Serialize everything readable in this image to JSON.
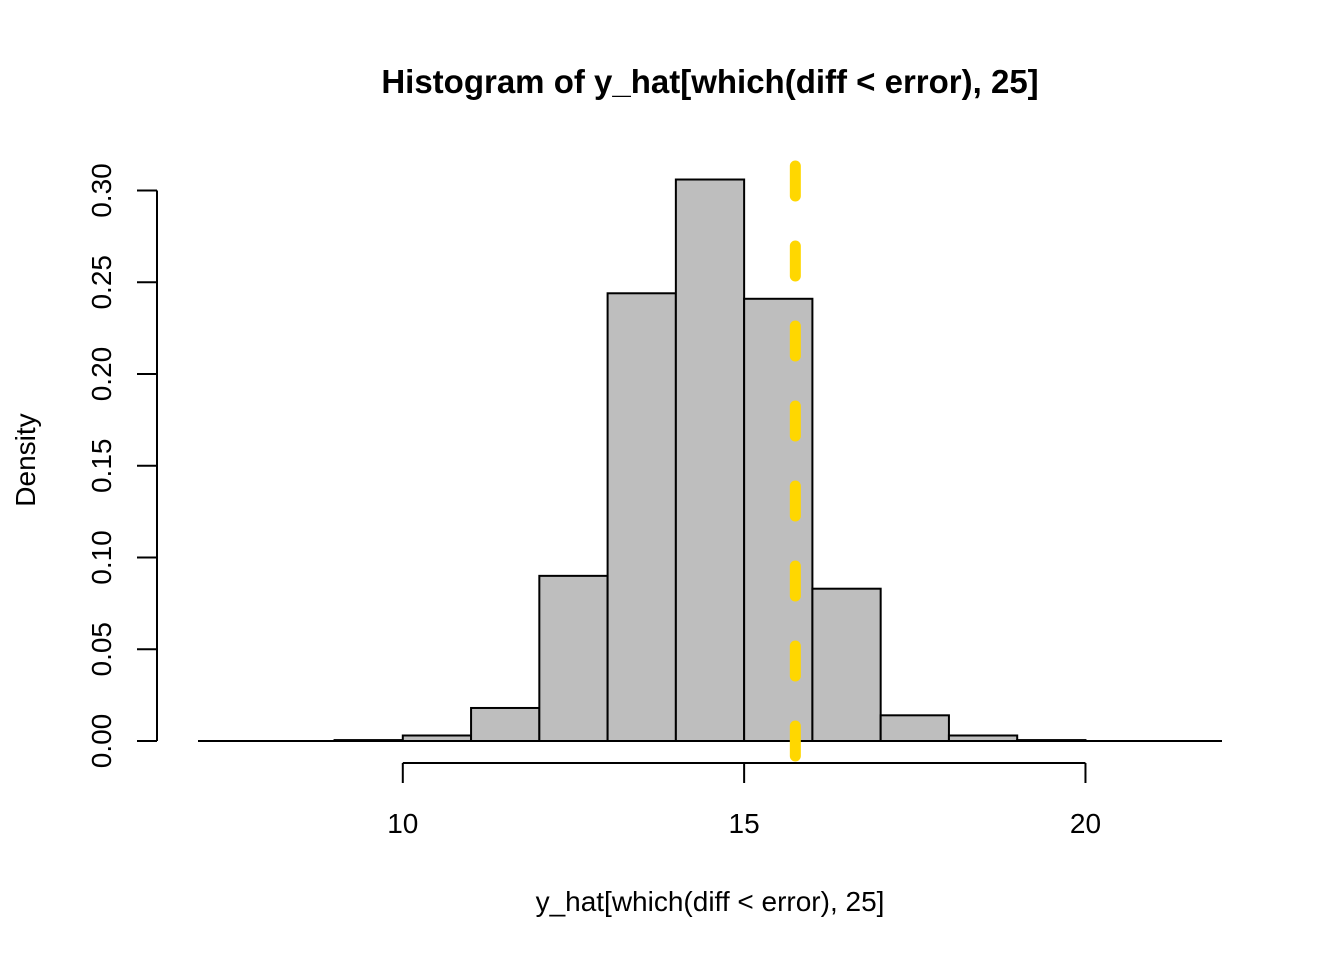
{
  "chart_data": {
    "type": "bar",
    "title": "Histogram of y_hat[which(diff < error), 25]",
    "xlabel": "y_hat[which(diff < error), 25]",
    "ylabel": "Density",
    "bins": [
      {
        "x0": 7,
        "x1": 8,
        "density": 0.0
      },
      {
        "x0": 8,
        "x1": 9,
        "density": 0.0
      },
      {
        "x0": 9,
        "x1": 10,
        "density": 0.0005
      },
      {
        "x0": 10,
        "x1": 11,
        "density": 0.003
      },
      {
        "x0": 11,
        "x1": 12,
        "density": 0.018
      },
      {
        "x0": 12,
        "x1": 13,
        "density": 0.09
      },
      {
        "x0": 13,
        "x1": 14,
        "density": 0.244
      },
      {
        "x0": 14,
        "x1": 15,
        "density": 0.306
      },
      {
        "x0": 15,
        "x1": 16,
        "density": 0.241
      },
      {
        "x0": 16,
        "x1": 17,
        "density": 0.083
      },
      {
        "x0": 17,
        "x1": 18,
        "density": 0.014
      },
      {
        "x0": 18,
        "x1": 19,
        "density": 0.003
      },
      {
        "x0": 19,
        "x1": 20,
        "density": 0.0005
      },
      {
        "x0": 20,
        "x1": 21,
        "density": 0.0
      },
      {
        "x0": 21,
        "x1": 22,
        "density": 0.0
      }
    ],
    "xlim": [
      7,
      22
    ],
    "ylim": [
      0,
      0.315
    ],
    "xticks": [
      10,
      15,
      20
    ],
    "yticks": [
      0.0,
      0.05,
      0.1,
      0.15,
      0.2,
      0.25,
      0.3
    ],
    "ytick_labels": [
      "0.00",
      "0.05",
      "0.10",
      "0.15",
      "0.20",
      "0.25",
      "0.30"
    ],
    "xtick_labels": [
      "10",
      "15",
      "20"
    ],
    "reference_line": {
      "x": 15.75,
      "color": "#FFD700",
      "style": "dashed"
    },
    "bar_fill": "#BEBEBE",
    "bar_stroke": "#000000",
    "grid": false
  }
}
